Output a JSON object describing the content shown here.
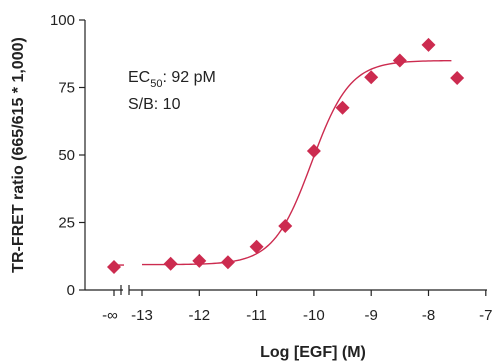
{
  "chart_data": {
    "type": "scatter",
    "title": "",
    "xlabel": "Log [EGF] (M)",
    "ylabel": "TR-FRET ratio (665/615 * 1,000)",
    "ylim": [
      0,
      100
    ],
    "xlim": [
      -13.25,
      -7
    ],
    "y_ticks": [
      0,
      25,
      50,
      75,
      100
    ],
    "y_tick_labels": [
      "0",
      "25",
      "50",
      "75",
      "100"
    ],
    "x_ticks": [
      -13,
      -12,
      -11,
      -10,
      -9,
      -8,
      -7
    ],
    "x_tick_labels": [
      "-13",
      "-12",
      "-11",
      "-10",
      "-9",
      "-8",
      "-7"
    ],
    "x_break_label": "-∞",
    "grid": false,
    "legend": "none",
    "marker_color": "#cc2b4f",
    "curve_color": "#cc2b4f",
    "annotations": {
      "ec50_prefix": "EC",
      "ec50_sub": "50",
      "ec50_value": ": 92 pM",
      "sb": "S/B: 10"
    },
    "zero_point": {
      "x": "-∞",
      "y": 8.5
    },
    "series": [
      {
        "x": [
          -12.5,
          -12.0,
          -11.5,
          -11.0,
          -10.5,
          -10.0,
          -9.5,
          -9.0,
          -8.5,
          -8.0,
          -7.5
        ],
        "y": [
          9.7,
          10.8,
          10.3,
          16.0,
          23.7,
          51.5,
          67.5,
          78.8,
          85.0,
          90.8,
          78.5
        ]
      }
    ],
    "fit": {
      "bottom": 9.4,
      "top": 85.0,
      "log_ec50": -10.04,
      "hill": 1.3,
      "x_start": -13.0,
      "x_end": -7.6
    }
  }
}
